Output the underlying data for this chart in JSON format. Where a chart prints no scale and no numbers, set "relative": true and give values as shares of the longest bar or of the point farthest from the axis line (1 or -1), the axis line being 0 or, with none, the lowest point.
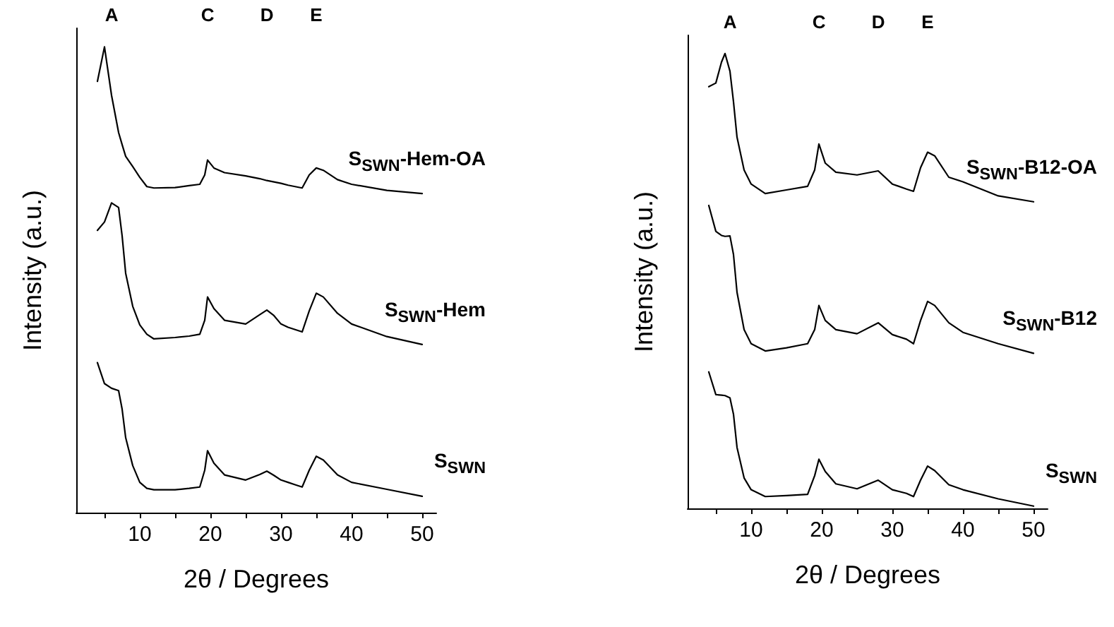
{
  "chart_data": [
    {
      "type": "line",
      "relative": true,
      "xlabel": "2θ / Degrees",
      "ylabel": "Intensity (a.u.)",
      "xlim": [
        1,
        52
      ],
      "xticks": [
        {
          "value": 5,
          "label": null
        },
        10,
        {
          "value": 15,
          "label": null
        },
        20,
        {
          "value": 25,
          "label": null
        },
        30,
        {
          "value": 35,
          "label": null
        },
        40,
        {
          "value": 45,
          "label": null
        },
        50
      ],
      "x": [
        4,
        5,
        6,
        7,
        7.5,
        8,
        9,
        10,
        11,
        12,
        15,
        17,
        18.5,
        19.2,
        19.6,
        20.5,
        22,
        25,
        27,
        28,
        29,
        30,
        31,
        32,
        33,
        34,
        35,
        36,
        38,
        40,
        45,
        50
      ],
      "marker": "none",
      "line_style": "solid",
      "legend": false,
      "grid": false,
      "annotations": [
        "A",
        "C",
        "D",
        "E"
      ],
      "series": [
        {
          "name": "S$_{SWN}$-Hem-OA",
          "color": "#000000",
          "values": [
            0.926,
            1.0,
            0.896,
            0.816,
            0.79,
            0.765,
            0.743,
            0.72,
            0.7,
            0.697,
            0.698,
            0.702,
            0.705,
            0.725,
            0.757,
            0.74,
            0.73,
            0.723,
            0.717,
            0.713,
            0.71,
            0.707,
            0.703,
            0.7,
            0.697,
            0.725,
            0.74,
            0.735,
            0.715,
            0.705,
            0.692,
            0.685
          ]
        },
        {
          "name": "S$_{SWN}$-Hem",
          "color": "#000000",
          "values": [
            0.606,
            0.624,
            0.665,
            0.655,
            0.594,
            0.514,
            0.443,
            0.403,
            0.383,
            0.373,
            0.376,
            0.379,
            0.383,
            0.413,
            0.463,
            0.438,
            0.413,
            0.405,
            0.425,
            0.435,
            0.423,
            0.405,
            0.398,
            0.393,
            0.388,
            0.433,
            0.471,
            0.463,
            0.428,
            0.405,
            0.378,
            0.361
          ]
        },
        {
          "name": "S$_{SWN}$",
          "color": "#000000",
          "values": [
            0.322,
            0.277,
            0.267,
            0.262,
            0.222,
            0.161,
            0.101,
            0.065,
            0.052,
            0.049,
            0.049,
            0.052,
            0.055,
            0.091,
            0.133,
            0.106,
            0.081,
            0.07,
            0.082,
            0.089,
            0.08,
            0.07,
            0.065,
            0.06,
            0.055,
            0.091,
            0.121,
            0.113,
            0.081,
            0.065,
            0.05,
            0.035
          ]
        }
      ]
    },
    {
      "type": "line",
      "relative": true,
      "xlabel": "2θ / Degrees",
      "ylabel": "Intensity (a.u.)",
      "xlim": [
        1,
        52
      ],
      "xticks": [
        {
          "value": 5,
          "label": null
        },
        10,
        {
          "value": 15,
          "label": null
        },
        20,
        {
          "value": 25,
          "label": null
        },
        30,
        {
          "value": 35,
          "label": null
        },
        40,
        {
          "value": 45,
          "label": null
        },
        50
      ],
      "x": [
        4,
        5,
        5.8,
        6.3,
        7,
        7.5,
        8,
        9,
        10,
        12,
        15,
        18,
        19,
        19.6,
        20.5,
        22,
        25,
        28,
        30,
        32,
        33,
        34,
        35,
        36,
        38,
        40,
        45,
        50
      ],
      "marker": "none",
      "line_style": "solid",
      "legend": false,
      "grid": false,
      "annotations": [
        "A",
        "C",
        "D",
        "E"
      ],
      "series": [
        {
          "name": "S$_{SWN}$-B12-OA",
          "color": "#000000",
          "values": [
            0.927,
            0.935,
            0.981,
            1.0,
            0.961,
            0.894,
            0.816,
            0.744,
            0.713,
            0.692,
            0.7,
            0.708,
            0.744,
            0.801,
            0.759,
            0.739,
            0.733,
            0.742,
            0.713,
            0.702,
            0.697,
            0.749,
            0.783,
            0.775,
            0.728,
            0.718,
            0.687,
            0.674
          ]
        },
        {
          "name": "S$_{SWN}$-B12",
          "color": "#000000",
          "values": [
            0.666,
            0.609,
            0.6,
            0.598,
            0.599,
            0.558,
            0.475,
            0.393,
            0.362,
            0.346,
            0.353,
            0.362,
            0.393,
            0.446,
            0.413,
            0.393,
            0.384,
            0.408,
            0.382,
            0.372,
            0.362,
            0.413,
            0.455,
            0.446,
            0.408,
            0.387,
            0.362,
            0.341
          ]
        },
        {
          "name": "S$_{SWN}$",
          "color": "#000000",
          "values": [
            0.3,
            0.25,
            0.249,
            0.248,
            0.243,
            0.207,
            0.134,
            0.067,
            0.041,
            0.026,
            0.028,
            0.031,
            0.072,
            0.108,
            0.081,
            0.054,
            0.043,
            0.062,
            0.041,
            0.033,
            0.026,
            0.062,
            0.093,
            0.083,
            0.052,
            0.041,
            0.021,
            0.005
          ]
        }
      ]
    }
  ]
}
